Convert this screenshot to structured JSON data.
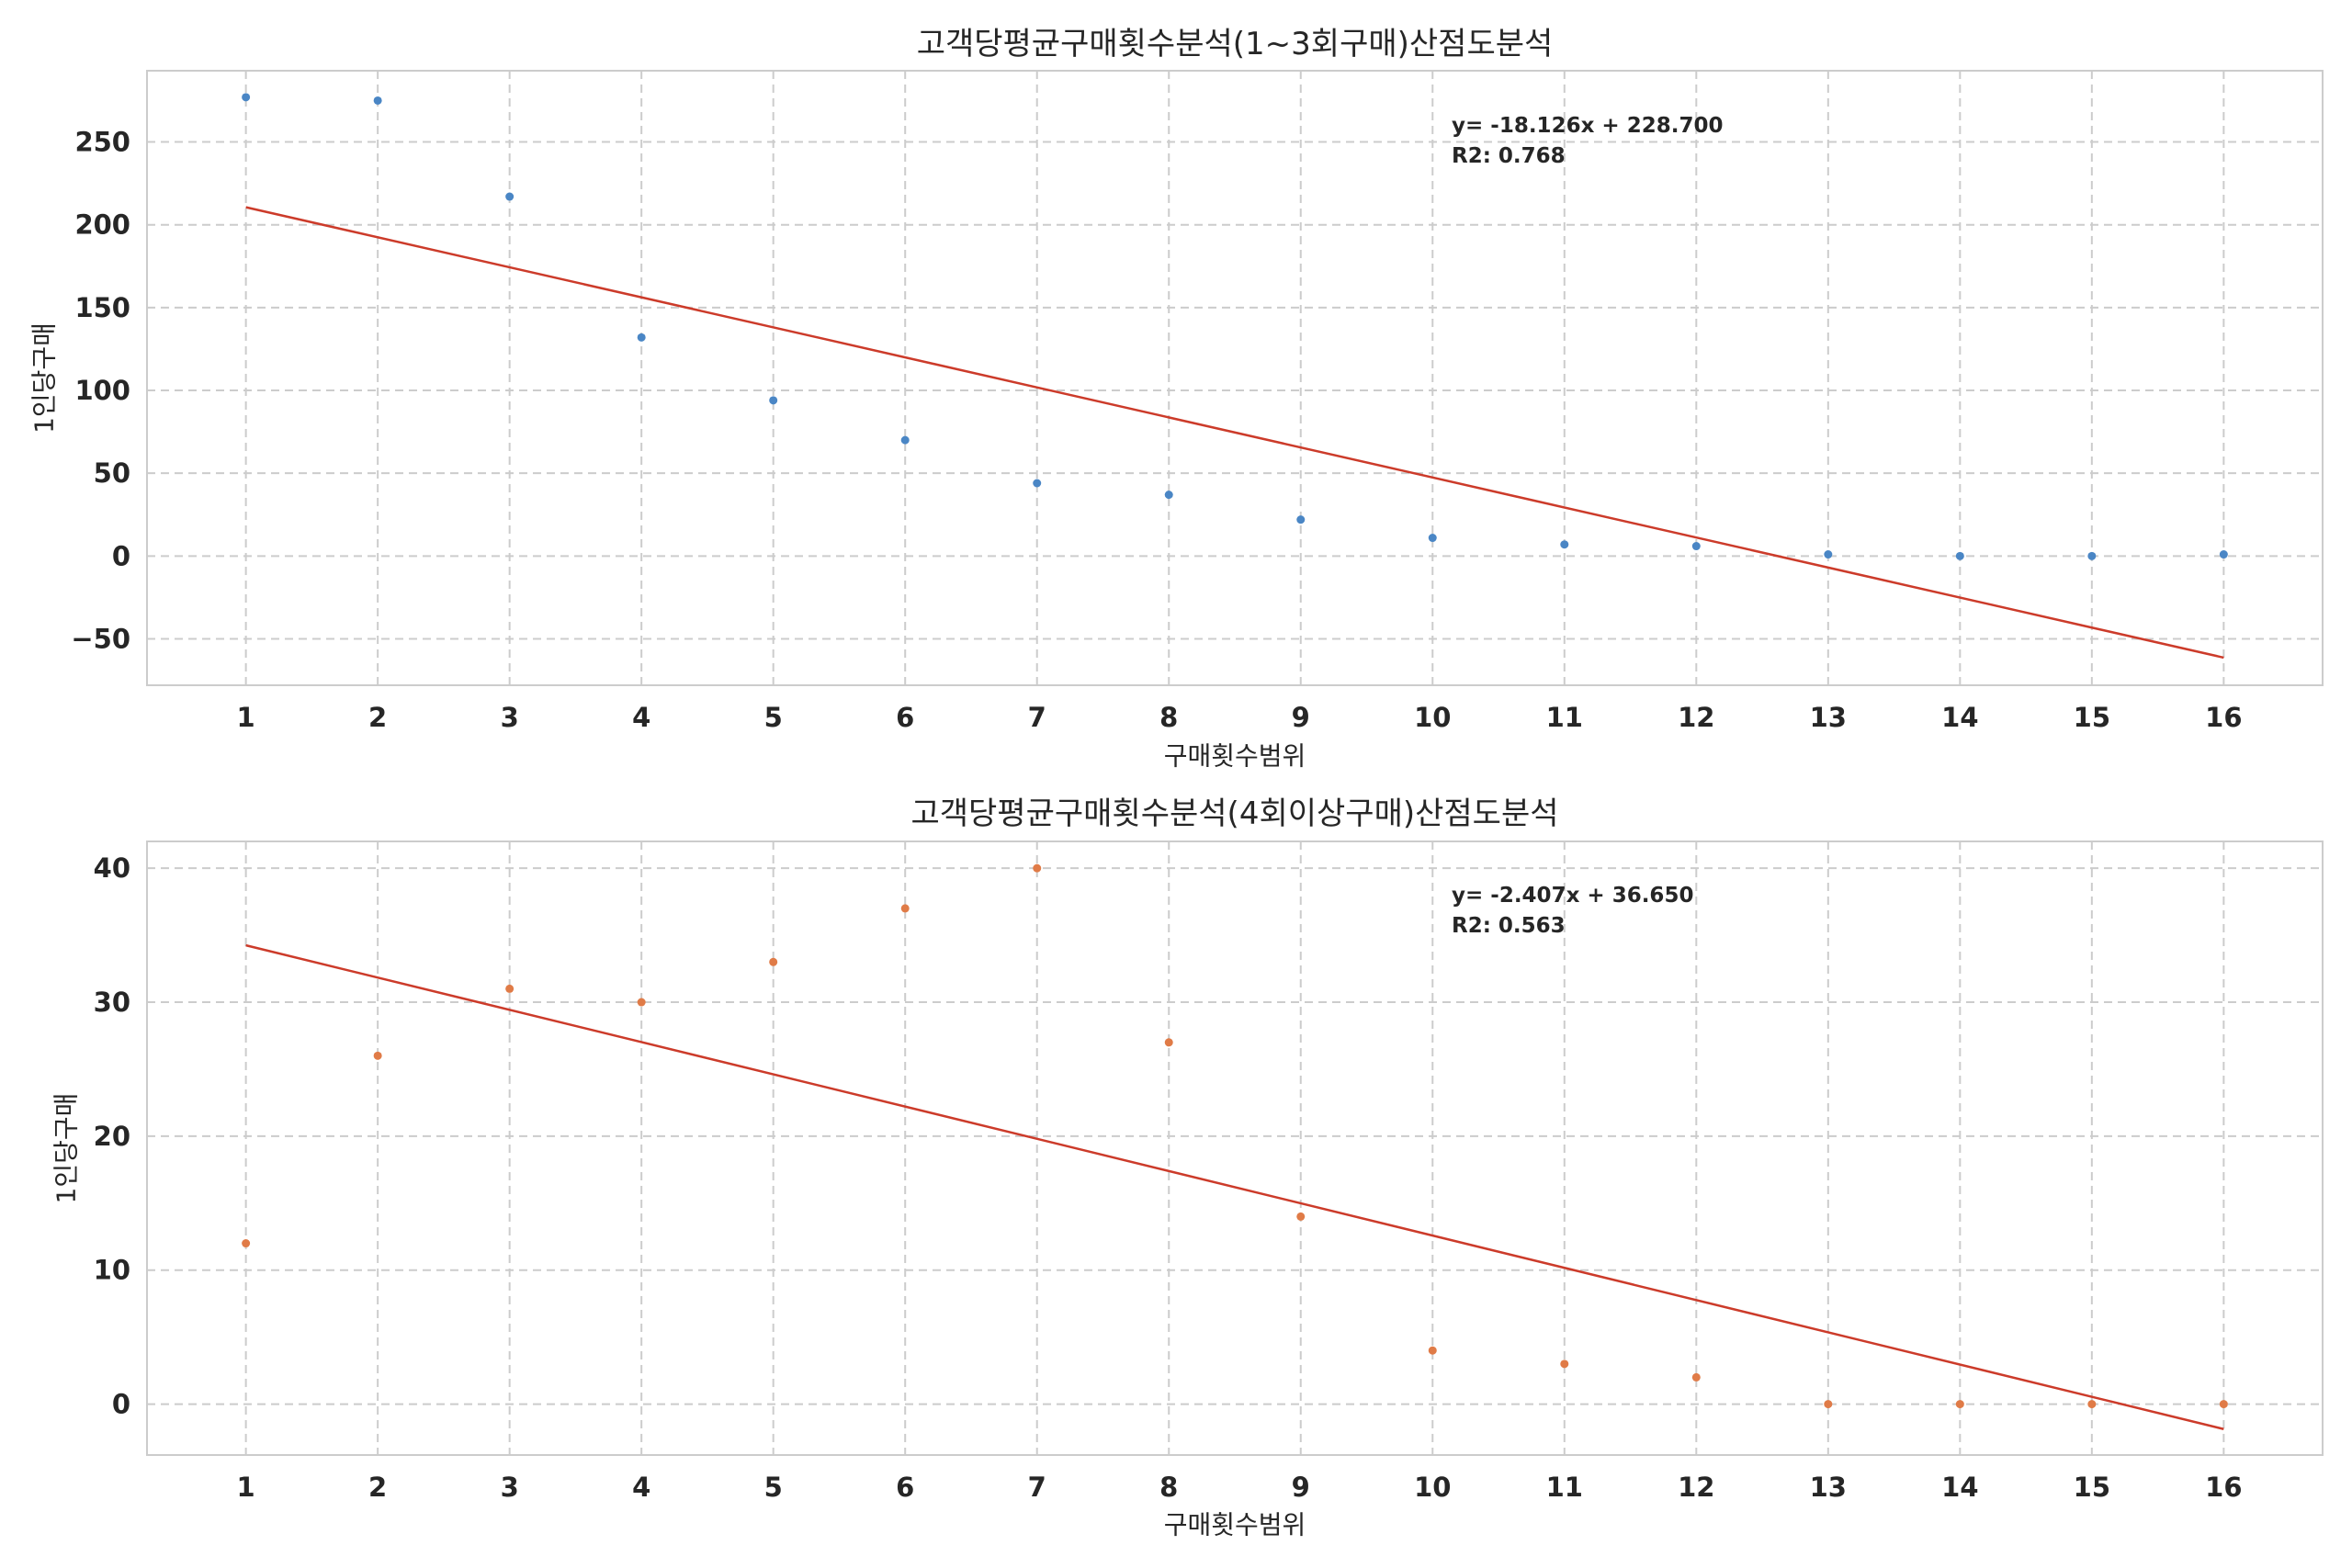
{
  "chart_data": [
    {
      "type": "scatter",
      "title": "고객당평균구매횟수분석(1~3회구매)산점도분석",
      "xlabel": "구매횟수범위",
      "ylabel": "1인당구매",
      "xlim": [
        0.25,
        16.75
      ],
      "ylim": [
        -78,
        293
      ],
      "xticks": [
        1,
        2,
        3,
        4,
        5,
        6,
        7,
        8,
        9,
        10,
        11,
        12,
        13,
        14,
        15,
        16
      ],
      "yticks": [
        -50,
        0,
        50,
        100,
        150,
        200,
        250
      ],
      "ytick_labels": [
        "−50",
        "0",
        "50",
        "100",
        "150",
        "200",
        "250"
      ],
      "grid": true,
      "points_color": "#4a86c5",
      "trend_color": "#cc3b2a",
      "x": [
        1,
        2,
        3,
        4,
        5,
        6,
        7,
        8,
        9,
        10,
        11,
        12,
        13,
        14,
        15,
        16
      ],
      "y": [
        277,
        275,
        217,
        132,
        94,
        70,
        44,
        37,
        22,
        11,
        7,
        6,
        1,
        0,
        0,
        1
      ],
      "trendline": {
        "slope": -18.126,
        "intercept": 228.7
      },
      "annotation": [
        "y= -18.126x + 228.700",
        "R2: 0.768"
      ]
    },
    {
      "type": "scatter",
      "title": "고객당평균구매횟수분석(4회이상구매)산점도분석",
      "xlabel": "구매횟수범위",
      "ylabel": "1인당구매",
      "xlim": [
        0.25,
        16.75
      ],
      "ylim": [
        -3.8,
        42
      ],
      "xticks": [
        1,
        2,
        3,
        4,
        5,
        6,
        7,
        8,
        9,
        10,
        11,
        12,
        13,
        14,
        15,
        16
      ],
      "yticks": [
        0,
        10,
        20,
        30,
        40
      ],
      "ytick_labels": [
        "0",
        "10",
        "20",
        "30",
        "40"
      ],
      "grid": true,
      "points_color": "#e07b47",
      "trend_color": "#cc3b2a",
      "x": [
        1,
        2,
        3,
        4,
        5,
        6,
        7,
        8,
        9,
        10,
        11,
        12,
        13,
        14,
        15,
        16
      ],
      "y": [
        12,
        26,
        31,
        30,
        33,
        37,
        40,
        27,
        14,
        4,
        3,
        2,
        0,
        0,
        0,
        0
      ],
      "trendline": {
        "slope": -2.407,
        "intercept": 36.65
      },
      "annotation": [
        "y= -2.407x + 36.650",
        "R2: 0.563"
      ]
    }
  ]
}
